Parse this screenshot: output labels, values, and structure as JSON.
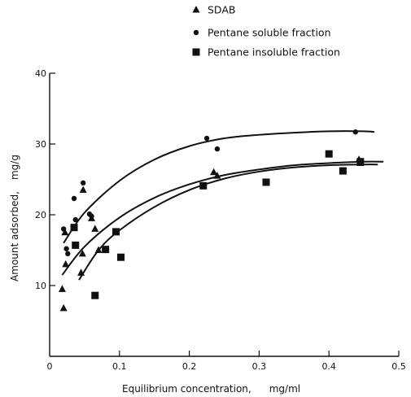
{
  "chart_data": {
    "type": "scatter",
    "xlabel": "Equilibrium concentration,",
    "xunit": "mg/ml",
    "ylabel": "Amount adsorbed,",
    "yunit": "mg/g",
    "xlim": [
      0,
      0.5
    ],
    "ylim": [
      0,
      40
    ],
    "x_ticks": [
      "0",
      "0.1",
      "0.2",
      "0.3",
      "0.4",
      "0.5"
    ],
    "y_ticks": [
      "10",
      "20",
      "30",
      "40"
    ],
    "legend_position": "top-right",
    "series": [
      {
        "name": "SDAB",
        "marker": "triangle",
        "points": [
          [
            0.018,
            9.5
          ],
          [
            0.02,
            6.8
          ],
          [
            0.022,
            17.5
          ],
          [
            0.023,
            13.0
          ],
          [
            0.045,
            11.8
          ],
          [
            0.047,
            14.5
          ],
          [
            0.048,
            23.5
          ],
          [
            0.06,
            19.5
          ],
          [
            0.065,
            18.0
          ],
          [
            0.07,
            15.0
          ],
          [
            0.235,
            26.0
          ],
          [
            0.24,
            25.5
          ],
          [
            0.443,
            27.8
          ],
          [
            0.445,
            27.3
          ]
        ],
        "fit": [
          [
            0.018,
            11.5
          ],
          [
            0.05,
            15.5
          ],
          [
            0.1,
            19.6
          ],
          [
            0.15,
            22.4
          ],
          [
            0.2,
            24.3
          ],
          [
            0.25,
            25.6
          ],
          [
            0.3,
            26.4
          ],
          [
            0.35,
            27.0
          ],
          [
            0.4,
            27.3
          ],
          [
            0.45,
            27.5
          ],
          [
            0.478,
            27.5
          ]
        ]
      },
      {
        "name": "Pentane soluble fraction",
        "marker": "circle",
        "points": [
          [
            0.02,
            18.0
          ],
          [
            0.024,
            15.2
          ],
          [
            0.026,
            14.5
          ],
          [
            0.035,
            22.3
          ],
          [
            0.037,
            19.3
          ],
          [
            0.048,
            24.5
          ],
          [
            0.057,
            20.1
          ],
          [
            0.06,
            19.8
          ],
          [
            0.225,
            30.8
          ],
          [
            0.24,
            29.3
          ],
          [
            0.438,
            31.7
          ]
        ],
        "fit": [
          [
            0.02,
            16.0
          ],
          [
            0.05,
            20.3
          ],
          [
            0.1,
            24.8
          ],
          [
            0.15,
            27.8
          ],
          [
            0.2,
            29.7
          ],
          [
            0.25,
            30.8
          ],
          [
            0.3,
            31.3
          ],
          [
            0.35,
            31.6
          ],
          [
            0.4,
            31.8
          ],
          [
            0.45,
            31.8
          ],
          [
            0.465,
            31.7
          ]
        ]
      },
      {
        "name": "Pentane insoluble fraction",
        "marker": "square",
        "points": [
          [
            0.035,
            18.2
          ],
          [
            0.037,
            15.7
          ],
          [
            0.065,
            8.6
          ],
          [
            0.08,
            15.1
          ],
          [
            0.095,
            17.6
          ],
          [
            0.102,
            14.0
          ],
          [
            0.22,
            24.1
          ],
          [
            0.31,
            24.6
          ],
          [
            0.4,
            28.6
          ],
          [
            0.42,
            26.2
          ],
          [
            0.445,
            27.5
          ]
        ],
        "fit": [
          [
            0.042,
            10.8
          ],
          [
            0.07,
            15.0
          ],
          [
            0.1,
            17.8
          ],
          [
            0.15,
            21.1
          ],
          [
            0.2,
            23.5
          ],
          [
            0.25,
            25.1
          ],
          [
            0.3,
            26.1
          ],
          [
            0.35,
            26.7
          ],
          [
            0.4,
            27.0
          ],
          [
            0.45,
            27.1
          ],
          [
            0.47,
            27.1
          ]
        ]
      }
    ]
  }
}
